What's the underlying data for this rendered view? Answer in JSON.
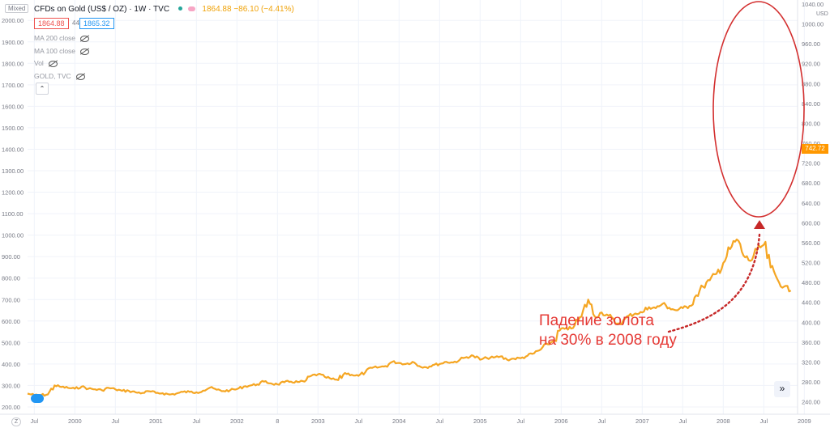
{
  "header": {
    "mode_label": "Mixed",
    "title": "CFDs on Gold (US$ / OZ) · 1W · TVC",
    "ohlc": "1864.88 −86.10 (−4.41%)",
    "bid": "1864.88",
    "spread": "44",
    "ask": "1865.32"
  },
  "indicators": [
    {
      "label": "MA 200 close",
      "icon": "eye-off-icon"
    },
    {
      "label": "MA 100 close",
      "icon": "eye-off-icon"
    },
    {
      "label": "Vol",
      "icon": "eye-off-icon"
    },
    {
      "label": "GOLD, TVC",
      "icon": "eye-off-icon"
    }
  ],
  "controls": {
    "collapse_glyph": "⌃",
    "scroll_glyph": "»",
    "zoom_label": "Z"
  },
  "annotation": {
    "line1": "Падение золота",
    "line2": "на 30% в 2008 году",
    "color": "#e53935"
  },
  "chart_data": {
    "type": "line",
    "line_color": "#f5a623",
    "x_tick_labels": [
      "Jul",
      "2000",
      "Jul",
      "2001",
      "Jul",
      "2002",
      "8",
      "2003",
      "Jul",
      "2004",
      "Jul",
      "2005",
      "Jul",
      "2006",
      "Jul",
      "2007",
      "Jul",
      "2008",
      "Jul",
      "2009"
    ],
    "x_tick_dates": [
      "1999-07",
      "2000-01",
      "2000-07",
      "2001-01",
      "2001-07",
      "2002-01",
      "2002-07",
      "2003-01",
      "2003-07",
      "2004-01",
      "2004-07",
      "2005-01",
      "2005-07",
      "2006-01",
      "2006-07",
      "2007-01",
      "2007-07",
      "2008-01",
      "2008-07",
      "2009-01"
    ],
    "left_axis": {
      "ticks": [
        "2000.00",
        "1900.00",
        "1800.00",
        "1700.00",
        "1600.00",
        "1500.00",
        "1400.00",
        "1300.00",
        "1200.00",
        "1100.00",
        "1000.00",
        "900.00",
        "800.00",
        "700.00",
        "600.00",
        "500.00",
        "400.00",
        "300.00",
        "200.00"
      ]
    },
    "right_axis": {
      "unit": "USD",
      "ticks": [
        "1040.00",
        "1000.00",
        "960.00",
        "920.00",
        "880.00",
        "840.00",
        "800.00",
        "760.00",
        "720.00",
        "680.00",
        "640.00",
        "600.00",
        "560.00",
        "520.00",
        "480.00",
        "440.00",
        "400.00",
        "360.00",
        "320.00",
        "280.00",
        "240.00"
      ],
      "last_price_label": "742.72"
    },
    "series": [
      {
        "x": [
          "1999-06",
          "1999-07",
          "1999-08",
          "1999-09",
          "1999-10",
          "1999-11",
          "1999-12",
          "2000-01",
          "2000-02",
          "2000-03",
          "2000-04",
          "2000-05",
          "2000-06",
          "2000-07",
          "2000-08",
          "2000-09",
          "2000-10",
          "2000-11",
          "2000-12",
          "2001-01",
          "2001-02",
          "2001-03",
          "2001-04",
          "2001-05",
          "2001-06",
          "2001-07",
          "2001-08",
          "2001-09",
          "2001-10",
          "2001-11",
          "2001-12",
          "2002-01",
          "2002-02",
          "2002-03",
          "2002-04",
          "2002-05",
          "2002-06",
          "2002-07",
          "2002-08",
          "2002-09",
          "2002-10",
          "2002-11",
          "2002-12",
          "2003-01",
          "2003-02",
          "2003-03",
          "2003-04",
          "2003-05",
          "2003-06",
          "2003-07",
          "2003-08",
          "2003-09",
          "2003-10",
          "2003-11",
          "2003-12",
          "2004-01",
          "2004-02",
          "2004-03",
          "2004-04",
          "2004-05",
          "2004-06",
          "2004-07",
          "2004-08",
          "2004-09",
          "2004-10",
          "2004-11",
          "2004-12",
          "2005-01",
          "2005-02",
          "2005-03",
          "2005-04",
          "2005-05",
          "2005-06",
          "2005-07",
          "2005-08",
          "2005-09",
          "2005-10",
          "2005-11",
          "2005-12",
          "2006-01",
          "2006-02",
          "2006-03",
          "2006-04",
          "2006-05",
          "2006-06",
          "2006-07",
          "2006-08",
          "2006-09",
          "2006-10",
          "2006-11",
          "2006-12",
          "2007-01",
          "2007-02",
          "2007-03",
          "2007-04",
          "2007-05",
          "2007-06",
          "2007-07",
          "2007-08",
          "2007-09",
          "2007-10",
          "2007-11",
          "2007-12",
          "2008-01",
          "2008-02",
          "2008-03",
          "2008-04",
          "2008-05",
          "2008-06",
          "2008-07",
          "2008-08",
          "2008-09",
          "2008-10",
          "2008-11"
        ],
        "values": [
          262,
          255,
          255,
          258,
          300,
          293,
          289,
          285,
          295,
          285,
          282,
          278,
          289,
          282,
          275,
          275,
          268,
          265,
          273,
          265,
          264,
          258,
          262,
          270,
          270,
          268,
          276,
          290,
          280,
          274,
          278,
          283,
          295,
          300,
          305,
          318,
          310,
          305,
          315,
          318,
          316,
          318,
          345,
          352,
          340,
          330,
          325,
          358,
          350,
          345,
          362,
          382,
          385,
          390,
          410,
          405,
          400,
          410,
          390,
          385,
          395,
          400,
          410,
          407,
          420,
          432,
          438,
          420,
          428,
          430,
          435,
          420,
          425,
          427,
          438,
          450,
          468,
          492,
          510,
          565,
          560,
          580,
          620,
          700,
          620,
          640,
          625,
          590,
          590,
          625,
          635,
          640,
          665,
          660,
          680,
          662,
          650,
          660,
          670,
          720,
          760,
          790,
          820,
          870,
          935,
          980,
          905,
          880,
          930,
          955,
          850,
          795,
          760,
          742
        ]
      }
    ],
    "left_ylim": [
      166,
      2095
    ],
    "right_ylim": [
      215,
      1048
    ]
  }
}
